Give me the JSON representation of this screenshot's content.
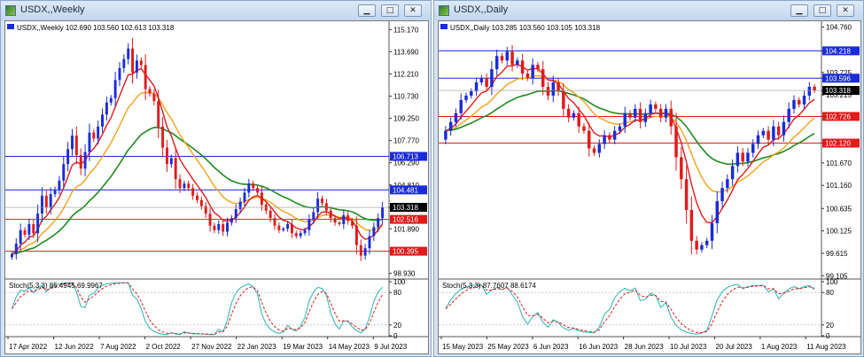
{
  "colors": {
    "bull": "#1a2bd8",
    "bear": "#e21a1a",
    "ma_red": "#e21a1a",
    "ma_orange": "#f4a21a",
    "ma_green": "#1f8a1f",
    "hline_blue": "#1a2bd8",
    "hline_red": "#e21a1a",
    "stoch_main": "#26b3b3",
    "stoch_signal": "#e21a1a",
    "current_price_bg": "#000000"
  },
  "icons": {
    "window": "chart-window-icon",
    "minimize": "minimize-icon",
    "maximize": "maximize-icon",
    "close": "close-icon"
  },
  "chart_data": [
    {
      "type": "candlestick",
      "window_title": "USDX,,Weekly",
      "info_line": "USDX,,Weekly  102.690 103.560 102.613 103.318",
      "stoch_label": "Stoch(5,3,3) 85.4945 69.9967",
      "y_ticks": [
        "115.170",
        "113.690",
        "112.210",
        "110.730",
        "109.250",
        "107.770",
        "106.290",
        "104.810",
        "103.318",
        "101.890",
        "100.410",
        "98.930"
      ],
      "ylim": [
        98.6,
        115.6
      ],
      "x_ticks": [
        "17 Apr 2022",
        "12 Jun 2022",
        "7 Aug 2022",
        "2 Oct 2022",
        "27 Nov 2022",
        "22 Jan 2023",
        "19 Mar 2023",
        "14 May 2023",
        "9 Jul 2023"
      ],
      "stoch_ticks": [
        "100",
        "80",
        "20",
        "0"
      ],
      "current_price": "103.318",
      "levels": [
        {
          "label": "106.713",
          "value": 106.713,
          "kind": "blue"
        },
        {
          "label": "104.481",
          "value": 104.481,
          "kind": "blue"
        },
        {
          "label": "102.516",
          "value": 102.516,
          "kind": "red"
        },
        {
          "label": "100.395",
          "value": 100.395,
          "kind": "red"
        }
      ],
      "closes": [
        100.2,
        100.9,
        101.8,
        101.5,
        102.2,
        101.6,
        102.9,
        104.1,
        103.3,
        104.2,
        104.5,
        105.1,
        106.2,
        107.2,
        108.1,
        106.8,
        105.9,
        107.0,
        108.3,
        107.9,
        108.7,
        109.5,
        110.3,
        110.6,
        111.8,
        112.6,
        113.2,
        113.9,
        112.3,
        113.1,
        112.8,
        111.2,
        110.9,
        110.4,
        108.7,
        107.3,
        106.2,
        106.6,
        105.2,
        104.6,
        104.9,
        104.6,
        104.1,
        103.8,
        103.4,
        102.9,
        102.1,
        101.8,
        102.2,
        101.7,
        102.3,
        102.6,
        103.2,
        103.7,
        104.3,
        104.9,
        104.6,
        104.3,
        103.5,
        103.1,
        102.6,
        102.1,
        101.8,
        101.9,
        102.2,
        101.6,
        101.4,
        101.6,
        101.8,
        102.5,
        103.0,
        103.9,
        103.6,
        103.1,
        102.6,
        102.3,
        102.2,
        102.8,
        102.4,
        102.1,
        100.8,
        100.1,
        100.6,
        101.4,
        102.0,
        102.6,
        103.318
      ]
    },
    {
      "type": "candlestick",
      "window_title": "USDX,,Daily",
      "info_line": "USDX,,Daily  103.285 103.560 103.105 103.318",
      "stoch_label": "Stoch(5,3,3) 87.7607 88.6174",
      "y_ticks": [
        "104.760",
        "104.218",
        "103.725",
        "103.596",
        "103.318",
        "103.215",
        "102.726",
        "102.120",
        "101.670",
        "101.160",
        "100.635",
        "100.125",
        "99.615",
        "99.105"
      ],
      "ylim": [
        99.05,
        104.85
      ],
      "x_ticks": [
        "15 May 2023",
        "25 May 2023",
        "6 Jun 2023",
        "16 Jun 2023",
        "28 Jun 2023",
        "10 Jul 2023",
        "20 Jul 2023",
        "1 Aug 2023",
        "11 Aug 2023"
      ],
      "stoch_ticks": [
        "100",
        "80",
        "20",
        "0"
      ],
      "current_price": "103.318",
      "levels": [
        {
          "label": "104.218",
          "value": 104.218,
          "kind": "blue"
        },
        {
          "label": "103.596",
          "value": 103.596,
          "kind": "blue"
        },
        {
          "label": "102.726",
          "value": 102.726,
          "kind": "red"
        },
        {
          "label": "102.120",
          "value": 102.12,
          "kind": "red"
        }
      ],
      "closes": [
        102.4,
        102.6,
        102.8,
        103.1,
        103.2,
        103.3,
        103.5,
        103.6,
        103.4,
        103.8,
        104.1,
        104.0,
        104.2,
        103.9,
        104.0,
        103.7,
        103.6,
        103.9,
        103.8,
        103.4,
        103.2,
        103.5,
        103.3,
        102.9,
        102.7,
        102.8,
        102.5,
        102.4,
        102.0,
        101.9,
        102.1,
        102.3,
        102.2,
        102.4,
        102.5,
        102.8,
        102.7,
        102.9,
        102.6,
        102.8,
        103.0,
        102.9,
        102.7,
        102.9,
        102.5,
        101.8,
        101.3,
        100.6,
        99.9,
        99.7,
        99.8,
        99.9,
        100.3,
        100.8,
        101.1,
        101.3,
        101.6,
        101.9,
        101.7,
        101.9,
        102.1,
        102.3,
        102.4,
        102.2,
        102.5,
        102.3,
        102.6,
        102.9,
        103.1,
        103.0,
        103.2,
        103.4,
        103.318
      ]
    }
  ]
}
